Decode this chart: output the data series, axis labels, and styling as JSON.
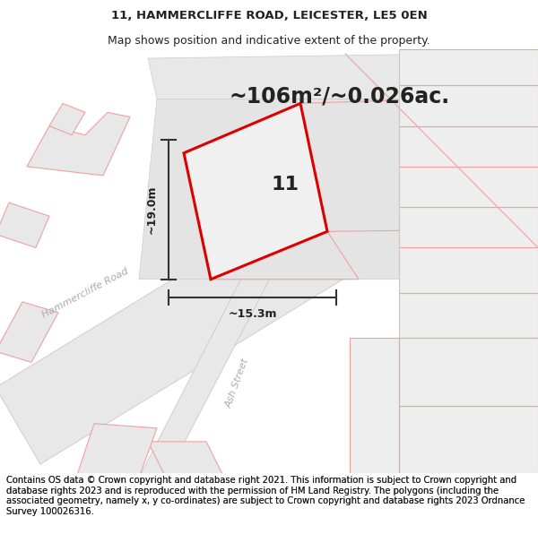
{
  "title_line1": "11, HAMMERCLIFFE ROAD, LEICESTER, LE5 0EN",
  "title_line2": "Map shows position and indicative extent of the property.",
  "area_label": "~106m²/~0.026ac.",
  "width_label": "~15.3m",
  "height_label": "~19.0m",
  "number_label": "11",
  "footer_text": "Contains OS data © Crown copyright and database right 2021. This information is subject to Crown copyright and database rights 2023 and is reproduced with the permission of HM Land Registry. The polygons (including the associated geometry, namely x, y co-ordinates) are subject to Crown copyright and database rights 2023 Ordnance Survey 100026316.",
  "bg_color": "#ffffff",
  "map_bg": "#f8f8f8",
  "red_outline": "#dd0000",
  "pink_lines": "#f0a0a0",
  "grey_fill": "#e8e8e8",
  "road_fill": "#e0e0e0",
  "dark_color": "#222222",
  "title_fontsize": 9.5,
  "area_fontsize": 18,
  "label_fontsize": 9,
  "footer_fontsize": 7.2,
  "road_label_color": "#aaaaaa",
  "plot_fill": "#ebebeb"
}
